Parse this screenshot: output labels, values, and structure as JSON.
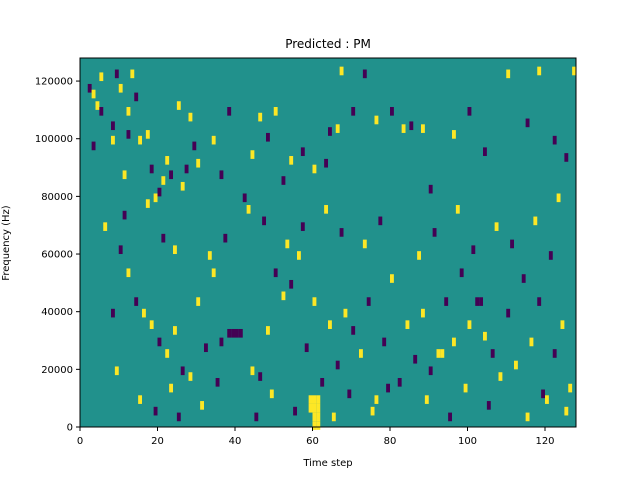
{
  "chart_data": {
    "type": "heatmap",
    "title": "Predicted : PM",
    "xlabel": "Time step",
    "ylabel": "Frequency (Hz)",
    "xlim": [
      0,
      128
    ],
    "ylim": [
      0,
      128000
    ],
    "x_ticks": [
      0,
      20,
      40,
      60,
      80,
      100,
      120
    ],
    "x_tick_labels": [
      "0",
      "20",
      "40",
      "60",
      "80",
      "100",
      "120"
    ],
    "y_ticks": [
      0,
      20000,
      40000,
      60000,
      80000,
      100000,
      120000
    ],
    "y_tick_labels": [
      "0",
      "20000",
      "40000",
      "60000",
      "80000",
      "100000",
      "120000"
    ],
    "colors": {
      "background": "#21918c",
      "high": "#fde725",
      "low": "#440154"
    },
    "grid": false,
    "n_time_steps": 128,
    "n_freq_bins": 128,
    "bin_height_hz": 1000,
    "cells": [
      {
        "t": 2,
        "f": 118,
        "level": "low"
      },
      {
        "t": 3,
        "f": 116,
        "level": "high"
      },
      {
        "t": 4,
        "f": 112,
        "level": "high"
      },
      {
        "t": 5,
        "f": 122,
        "level": "high"
      },
      {
        "t": 8,
        "f": 105,
        "level": "low"
      },
      {
        "t": 8,
        "f": 100,
        "level": "high"
      },
      {
        "t": 9,
        "f": 123,
        "level": "low"
      },
      {
        "t": 10,
        "f": 118,
        "level": "high"
      },
      {
        "t": 12,
        "f": 102,
        "level": "low"
      },
      {
        "t": 13,
        "f": 123,
        "level": "high"
      },
      {
        "t": 14,
        "f": 115,
        "level": "low"
      },
      {
        "t": 17,
        "f": 102,
        "level": "high"
      },
      {
        "t": 18,
        "f": 90,
        "level": "low"
      },
      {
        "t": 20,
        "f": 82,
        "level": "low"
      },
      {
        "t": 21,
        "f": 86,
        "level": "high"
      },
      {
        "t": 23,
        "f": 88,
        "level": "low"
      },
      {
        "t": 25,
        "f": 112,
        "level": "high"
      },
      {
        "t": 28,
        "f": 108,
        "level": "high"
      },
      {
        "t": 29,
        "f": 98,
        "level": "low"
      },
      {
        "t": 30,
        "f": 92,
        "level": "high"
      },
      {
        "t": 3,
        "f": 98,
        "level": "low"
      },
      {
        "t": 5,
        "f": 110,
        "level": "low"
      },
      {
        "t": 11,
        "f": 88,
        "level": "high"
      },
      {
        "t": 12,
        "f": 110,
        "level": "high"
      },
      {
        "t": 15,
        "f": 100,
        "level": "high"
      },
      {
        "t": 19,
        "f": 80,
        "level": "high"
      },
      {
        "t": 22,
        "f": 93,
        "level": "high"
      },
      {
        "t": 26,
        "f": 84,
        "level": "high"
      },
      {
        "t": 27,
        "f": 90,
        "level": "low"
      },
      {
        "t": 34,
        "f": 100,
        "level": "high"
      },
      {
        "t": 36,
        "f": 88,
        "level": "low"
      },
      {
        "t": 38,
        "f": 110,
        "level": "low"
      },
      {
        "t": 42,
        "f": 80,
        "level": "low"
      },
      {
        "t": 44,
        "f": 95,
        "level": "high"
      },
      {
        "t": 46,
        "f": 108,
        "level": "high"
      },
      {
        "t": 48,
        "f": 101,
        "level": "low"
      },
      {
        "t": 50,
        "f": 110,
        "level": "high"
      },
      {
        "t": 52,
        "f": 86,
        "level": "low"
      },
      {
        "t": 54,
        "f": 93,
        "level": "high"
      },
      {
        "t": 57,
        "f": 96,
        "level": "low"
      },
      {
        "t": 60,
        "f": 90,
        "level": "high"
      },
      {
        "t": 63,
        "f": 92,
        "level": "low"
      },
      {
        "t": 64,
        "f": 103,
        "level": "low"
      },
      {
        "t": 66,
        "f": 104,
        "level": "high"
      },
      {
        "t": 67,
        "f": 124,
        "level": "high"
      },
      {
        "t": 70,
        "f": 110,
        "level": "low"
      },
      {
        "t": 73,
        "f": 123,
        "level": "low"
      },
      {
        "t": 76,
        "f": 107,
        "level": "high"
      },
      {
        "t": 80,
        "f": 110,
        "level": "low"
      },
      {
        "t": 83,
        "f": 104,
        "level": "high"
      },
      {
        "t": 85,
        "f": 105,
        "level": "low"
      },
      {
        "t": 88,
        "f": 104,
        "level": "high"
      },
      {
        "t": 90,
        "f": 83,
        "level": "low"
      },
      {
        "t": 96,
        "f": 102,
        "level": "high"
      },
      {
        "t": 100,
        "f": 110,
        "level": "low"
      },
      {
        "t": 104,
        "f": 96,
        "level": "low"
      },
      {
        "t": 110,
        "f": 123,
        "level": "high"
      },
      {
        "t": 115,
        "f": 106,
        "level": "low"
      },
      {
        "t": 118,
        "f": 124,
        "level": "high"
      },
      {
        "t": 122,
        "f": 100,
        "level": "low"
      },
      {
        "t": 125,
        "f": 94,
        "level": "low"
      },
      {
        "t": 127,
        "f": 124,
        "level": "high"
      },
      {
        "t": 10,
        "f": 62,
        "level": "low"
      },
      {
        "t": 12,
        "f": 54,
        "level": "high"
      },
      {
        "t": 14,
        "f": 44,
        "level": "low"
      },
      {
        "t": 16,
        "f": 40,
        "level": "high"
      },
      {
        "t": 18,
        "f": 36,
        "level": "high"
      },
      {
        "t": 20,
        "f": 30,
        "level": "low"
      },
      {
        "t": 22,
        "f": 26,
        "level": "high"
      },
      {
        "t": 24,
        "f": 34,
        "level": "high"
      },
      {
        "t": 26,
        "f": 20,
        "level": "low"
      },
      {
        "t": 28,
        "f": 18,
        "level": "high"
      },
      {
        "t": 30,
        "f": 44,
        "level": "high"
      },
      {
        "t": 32,
        "f": 28,
        "level": "low"
      },
      {
        "t": 34,
        "f": 54,
        "level": "high"
      },
      {
        "t": 36,
        "f": 30,
        "level": "low"
      },
      {
        "t": 38,
        "f": 33,
        "level": "low"
      },
      {
        "t": 39,
        "f": 33,
        "level": "low"
      },
      {
        "t": 40,
        "f": 33,
        "level": "low"
      },
      {
        "t": 41,
        "f": 33,
        "level": "low"
      },
      {
        "t": 44,
        "f": 20,
        "level": "high"
      },
      {
        "t": 46,
        "f": 18,
        "level": "low"
      },
      {
        "t": 48,
        "f": 34,
        "level": "high"
      },
      {
        "t": 50,
        "f": 54,
        "level": "low"
      },
      {
        "t": 52,
        "f": 46,
        "level": "high"
      },
      {
        "t": 54,
        "f": 50,
        "level": "low"
      },
      {
        "t": 56,
        "f": 60,
        "level": "high"
      },
      {
        "t": 58,
        "f": 28,
        "level": "low"
      },
      {
        "t": 59,
        "f": 10,
        "level": "high"
      },
      {
        "t": 60,
        "f": 10,
        "level": "high"
      },
      {
        "t": 61,
        "f": 10,
        "level": "high"
      },
      {
        "t": 59,
        "f": 7,
        "level": "high"
      },
      {
        "t": 60,
        "f": 7,
        "level": "high"
      },
      {
        "t": 61,
        "f": 7,
        "level": "high"
      },
      {
        "t": 60,
        "f": 4,
        "level": "high"
      },
      {
        "t": 61,
        "f": 4,
        "level": "high"
      },
      {
        "t": 60,
        "f": 1,
        "level": "high"
      },
      {
        "t": 61,
        "f": 1,
        "level": "high"
      },
      {
        "t": 60,
        "f": 44,
        "level": "high"
      },
      {
        "t": 62,
        "f": 16,
        "level": "low"
      },
      {
        "t": 64,
        "f": 36,
        "level": "high"
      },
      {
        "t": 66,
        "f": 22,
        "level": "low"
      },
      {
        "t": 68,
        "f": 40,
        "level": "high"
      },
      {
        "t": 70,
        "f": 34,
        "level": "low"
      },
      {
        "t": 72,
        "f": 26,
        "level": "high"
      },
      {
        "t": 74,
        "f": 44,
        "level": "low"
      },
      {
        "t": 76,
        "f": 10,
        "level": "high"
      },
      {
        "t": 78,
        "f": 30,
        "level": "low"
      },
      {
        "t": 80,
        "f": 52,
        "level": "high"
      },
      {
        "t": 82,
        "f": 16,
        "level": "low"
      },
      {
        "t": 84,
        "f": 36,
        "level": "high"
      },
      {
        "t": 86,
        "f": 24,
        "level": "low"
      },
      {
        "t": 88,
        "f": 40,
        "level": "high"
      },
      {
        "t": 90,
        "f": 20,
        "level": "low"
      },
      {
        "t": 92,
        "f": 26,
        "level": "high"
      },
      {
        "t": 93,
        "f": 26,
        "level": "high"
      },
      {
        "t": 94,
        "f": 44,
        "level": "low"
      },
      {
        "t": 96,
        "f": 30,
        "level": "high"
      },
      {
        "t": 98,
        "f": 54,
        "level": "low"
      },
      {
        "t": 100,
        "f": 36,
        "level": "high"
      },
      {
        "t": 102,
        "f": 44,
        "level": "low"
      },
      {
        "t": 103,
        "f": 44,
        "level": "low"
      },
      {
        "t": 104,
        "f": 32,
        "level": "high"
      },
      {
        "t": 106,
        "f": 26,
        "level": "low"
      },
      {
        "t": 108,
        "f": 18,
        "level": "high"
      },
      {
        "t": 110,
        "f": 40,
        "level": "low"
      },
      {
        "t": 112,
        "f": 22,
        "level": "high"
      },
      {
        "t": 114,
        "f": 52,
        "level": "low"
      },
      {
        "t": 116,
        "f": 30,
        "level": "high"
      },
      {
        "t": 118,
        "f": 44,
        "level": "low"
      },
      {
        "t": 120,
        "f": 10,
        "level": "high"
      },
      {
        "t": 122,
        "f": 26,
        "level": "low"
      },
      {
        "t": 124,
        "f": 36,
        "level": "high"
      },
      {
        "t": 126,
        "f": 14,
        "level": "high"
      },
      {
        "t": 8,
        "f": 40,
        "level": "low"
      },
      {
        "t": 9,
        "f": 20,
        "level": "high"
      },
      {
        "t": 15,
        "f": 10,
        "level": "high"
      },
      {
        "t": 19,
        "f": 6,
        "level": "low"
      },
      {
        "t": 23,
        "f": 14,
        "level": "high"
      },
      {
        "t": 25,
        "f": 4,
        "level": "low"
      },
      {
        "t": 31,
        "f": 8,
        "level": "high"
      },
      {
        "t": 35,
        "f": 16,
        "level": "low"
      },
      {
        "t": 45,
        "f": 4,
        "level": "low"
      },
      {
        "t": 49,
        "f": 12,
        "level": "high"
      },
      {
        "t": 55,
        "f": 6,
        "level": "low"
      },
      {
        "t": 65,
        "f": 4,
        "level": "high"
      },
      {
        "t": 69,
        "f": 12,
        "level": "low"
      },
      {
        "t": 75,
        "f": 6,
        "level": "high"
      },
      {
        "t": 79,
        "f": 14,
        "level": "low"
      },
      {
        "t": 89,
        "f": 10,
        "level": "high"
      },
      {
        "t": 95,
        "f": 4,
        "level": "low"
      },
      {
        "t": 99,
        "f": 14,
        "level": "high"
      },
      {
        "t": 105,
        "f": 8,
        "level": "low"
      },
      {
        "t": 115,
        "f": 4,
        "level": "high"
      },
      {
        "t": 119,
        "f": 12,
        "level": "low"
      },
      {
        "t": 125,
        "f": 6,
        "level": "high"
      },
      {
        "t": 6,
        "f": 70,
        "level": "high"
      },
      {
        "t": 11,
        "f": 74,
        "level": "low"
      },
      {
        "t": 17,
        "f": 78,
        "level": "high"
      },
      {
        "t": 21,
        "f": 66,
        "level": "low"
      },
      {
        "t": 24,
        "f": 62,
        "level": "high"
      },
      {
        "t": 33,
        "f": 60,
        "level": "high"
      },
      {
        "t": 37,
        "f": 66,
        "level": "low"
      },
      {
        "t": 43,
        "f": 76,
        "level": "high"
      },
      {
        "t": 47,
        "f": 72,
        "level": "low"
      },
      {
        "t": 53,
        "f": 64,
        "level": "high"
      },
      {
        "t": 57,
        "f": 70,
        "level": "low"
      },
      {
        "t": 63,
        "f": 76,
        "level": "high"
      },
      {
        "t": 67,
        "f": 68,
        "level": "low"
      },
      {
        "t": 73,
        "f": 64,
        "level": "high"
      },
      {
        "t": 77,
        "f": 72,
        "level": "low"
      },
      {
        "t": 87,
        "f": 60,
        "level": "high"
      },
      {
        "t": 91,
        "f": 68,
        "level": "low"
      },
      {
        "t": 97,
        "f": 76,
        "level": "high"
      },
      {
        "t": 101,
        "f": 62,
        "level": "low"
      },
      {
        "t": 107,
        "f": 70,
        "level": "high"
      },
      {
        "t": 111,
        "f": 64,
        "level": "low"
      },
      {
        "t": 117,
        "f": 72,
        "level": "high"
      },
      {
        "t": 121,
        "f": 60,
        "level": "low"
      },
      {
        "t": 123,
        "f": 80,
        "level": "high"
      }
    ]
  }
}
